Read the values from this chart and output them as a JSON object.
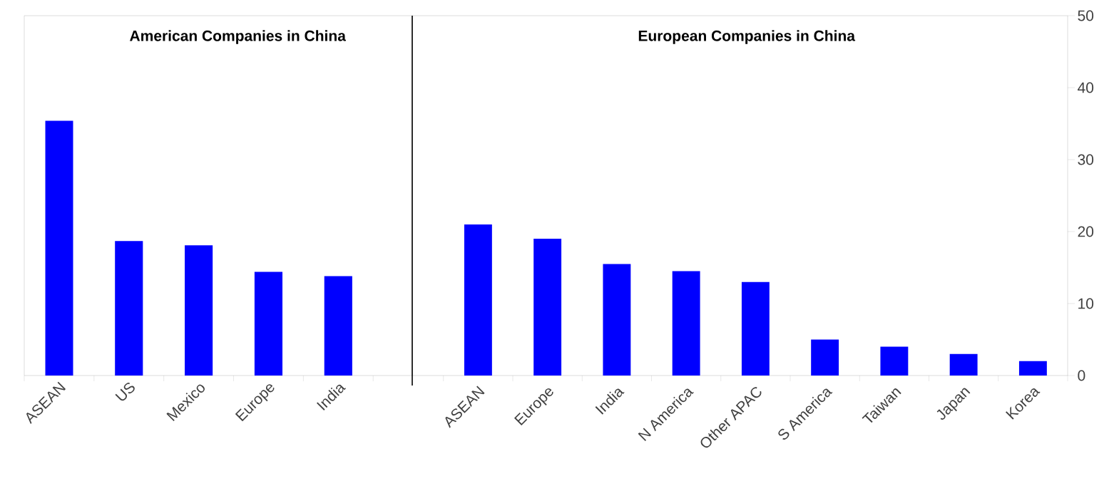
{
  "chart_data": [
    {
      "type": "bar",
      "title": "American Companies in China",
      "categories": [
        "ASEAN",
        "US",
        "Mexico",
        "Europe",
        "India"
      ],
      "values": [
        35.4,
        18.7,
        18.1,
        14.4,
        13.8
      ],
      "color": "#0000ff",
      "ylim": [
        0,
        50
      ],
      "yticks": [
        0,
        10,
        20,
        30,
        40,
        50
      ],
      "tick_labels": "x"
    },
    {
      "type": "bar",
      "title": "European Companies in China",
      "categories": [
        "ASEAN",
        "Europe",
        "India",
        "N America",
        "Other APAC",
        "S America",
        "Taiwan",
        "Japan",
        "Korea"
      ],
      "values": [
        21,
        19,
        15.5,
        14.5,
        13,
        5,
        4,
        3,
        2
      ],
      "color": "#0000ff",
      "ylim": [
        0,
        50
      ],
      "yticks": [
        0,
        10,
        20,
        30,
        40,
        50
      ]
    }
  ]
}
